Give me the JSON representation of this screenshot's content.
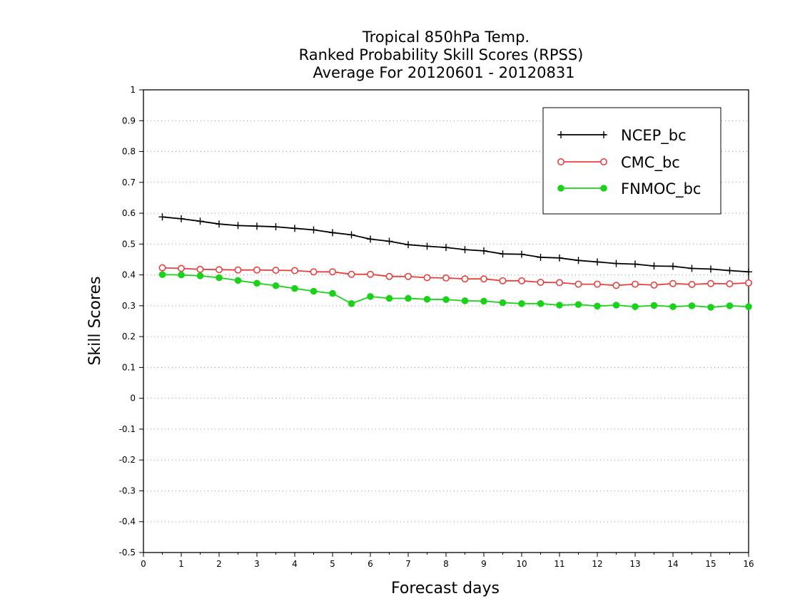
{
  "chart_data": {
    "type": "line",
    "title_lines": [
      "Tropical 850hPa Temp.",
      "Ranked Probability Skill Scores (RPSS)",
      "Average For 20120601 - 20120831"
    ],
    "xlabel": "Forecast days",
    "ylabel": "Skill Scores",
    "xlim": [
      0,
      16
    ],
    "ylim": [
      -0.5,
      1
    ],
    "xticks": [
      0,
      1,
      2,
      3,
      4,
      5,
      6,
      7,
      8,
      9,
      10,
      11,
      12,
      13,
      14,
      15,
      16
    ],
    "yticks": [
      -0.5,
      -0.4,
      -0.3,
      -0.2,
      -0.1,
      0,
      0.1,
      0.2,
      0.3,
      0.4,
      0.5,
      0.6,
      0.7,
      0.8,
      0.9,
      1
    ],
    "ytick_labels": [
      "-0.5",
      "-0.4",
      "-0.3",
      "-0.2",
      "-0.1",
      "0",
      "0.1",
      "0.2",
      "0.3",
      "0.4",
      "0.5",
      "0.6",
      "0.7",
      "0.8",
      "0.9",
      "1"
    ],
    "grid": "horizontal dotted",
    "legend_position": "top-right",
    "x": [
      0.5,
      1,
      1.5,
      2,
      2.5,
      3,
      3.5,
      4,
      4.5,
      5,
      5.5,
      6,
      6.5,
      7,
      7.5,
      8,
      8.5,
      9,
      9.5,
      10,
      10.5,
      11,
      11.5,
      12,
      12.5,
      13,
      13.5,
      14,
      14.5,
      15,
      15.5,
      16
    ],
    "series": [
      {
        "name": "NCEP_bc",
        "color": "#000000",
        "marker": "plus",
        "values": [
          0.588,
          0.582,
          0.574,
          0.565,
          0.56,
          0.558,
          0.556,
          0.551,
          0.546,
          0.537,
          0.53,
          0.516,
          0.509,
          0.498,
          0.493,
          0.489,
          0.482,
          0.478,
          0.468,
          0.467,
          0.457,
          0.455,
          0.447,
          0.442,
          0.437,
          0.435,
          0.429,
          0.428,
          0.421,
          0.419,
          0.414,
          0.41
        ]
      },
      {
        "name": "CMC_bc",
        "color": "#e8403d",
        "marker": "open-circle",
        "values": [
          0.423,
          0.421,
          0.418,
          0.417,
          0.416,
          0.416,
          0.415,
          0.414,
          0.41,
          0.41,
          0.402,
          0.402,
          0.395,
          0.395,
          0.391,
          0.39,
          0.387,
          0.387,
          0.381,
          0.381,
          0.376,
          0.375,
          0.37,
          0.37,
          0.366,
          0.37,
          0.367,
          0.372,
          0.369,
          0.372,
          0.371,
          0.374
        ]
      },
      {
        "name": "FNMOC_bc",
        "color": "#19d219",
        "marker": "filled-circle",
        "values": [
          0.401,
          0.4,
          0.397,
          0.391,
          0.382,
          0.373,
          0.365,
          0.356,
          0.347,
          0.34,
          0.307,
          0.33,
          0.324,
          0.324,
          0.321,
          0.32,
          0.316,
          0.315,
          0.31,
          0.307,
          0.307,
          0.302,
          0.304,
          0.299,
          0.302,
          0.297,
          0.301,
          0.297,
          0.3,
          0.295,
          0.3,
          0.297
        ]
      }
    ]
  }
}
